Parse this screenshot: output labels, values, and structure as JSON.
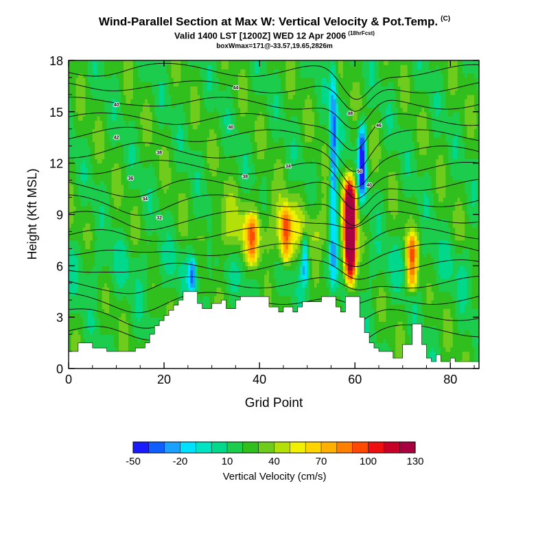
{
  "chart_data": {
    "type": "heatmap",
    "title": "Wind-Parallel Section at Max W: Vertical Velocity & Pot.Temp.",
    "title_mark": "(C)",
    "subtitle": "Valid 1400 LST [1200Z] WED 12 Apr 2006",
    "forecast_note": "(18hrFcst)",
    "info": "boxWmax=171@-33.57,19.65,2826m",
    "xlabel": "Grid Point",
    "ylabel": "Height (Kft MSL)",
    "xlim": [
      0,
      86
    ],
    "ylim": [
      0,
      18
    ],
    "x_ticks": [
      "0",
      "20",
      "40",
      "60",
      "80"
    ],
    "y_ticks": [
      "0",
      "3",
      "6",
      "9",
      "12",
      "15",
      "18"
    ],
    "colorbar": {
      "label": "Vertical Velocity (cm/s)",
      "tick_labels": [
        "-50",
        "-20",
        "10",
        "40",
        "70",
        "100",
        "130"
      ],
      "colors": [
        "#1a1aff",
        "#0f5fff",
        "#1aa0ff",
        "#00e0ff",
        "#00e4c4",
        "#00d88c",
        "#1ccc4c",
        "#30bf1c",
        "#70cc1c",
        "#b4e00a",
        "#f0f000",
        "#ffd400",
        "#ffb000",
        "#ff8000",
        "#ff4a00",
        "#ee1010",
        "#c80028",
        "#a80040"
      ]
    },
    "theta_contour_labels": [
      "40",
      "44",
      "42",
      "40",
      "38",
      "36",
      "34",
      "32",
      "48",
      "50",
      "46",
      "38",
      "34",
      "40"
    ],
    "updraft_cores": [
      {
        "x": 59,
        "z_bottom": 5,
        "z_top": 11,
        "max_w_cm_s": 171
      },
      {
        "x": 45.5,
        "z_bottom": 6,
        "z_top": 9.5,
        "max_w_cm_s": 70
      },
      {
        "x": 38.5,
        "z_bottom": 6,
        "z_top": 9,
        "max_w_cm_s": 55
      },
      {
        "x": 72,
        "z_bottom": 4.5,
        "z_top": 7.8,
        "max_w_cm_s": 80
      }
    ],
    "downdraft_cores": [
      {
        "x": 55.5,
        "z_bottom": 4.5,
        "z_top": 18,
        "min_w_cm_s": -40
      },
      {
        "x": 61.5,
        "z_bottom": 10,
        "z_top": 14.5,
        "min_w_cm_s": -50
      },
      {
        "x": 49.5,
        "z_bottom": 5,
        "z_top": 8,
        "min_w_cm_s": -30
      },
      {
        "x": 26,
        "z_bottom": 4.5,
        "z_top": 6.5,
        "min_w_cm_s": -30
      }
    ],
    "terrain_kft": [
      1,
      1,
      1.5,
      1.5,
      1.5,
      1.2,
      1.2,
      1.2,
      1,
      1,
      1,
      1,
      1,
      1,
      1.2,
      1.2,
      1.5,
      2,
      2.5,
      2.8,
      3.1,
      3.4,
      3.7,
      4,
      4.5,
      4.5,
      4.5,
      3.8,
      3.5,
      3.5,
      3.8,
      3.8,
      4,
      3.5,
      3.5,
      4,
      4.2,
      4.2,
      4.2,
      4.2,
      4.2,
      4.2,
      3.6,
      3.6,
      3.3,
      3.6,
      3.6,
      3.3,
      3.6,
      3.9,
      3.9,
      3.9,
      3.9,
      4.2,
      4.2,
      4.2,
      3.6,
      3.3,
      4.2,
      4.2,
      4.2,
      3,
      2.1,
      1.5,
      1.2,
      1,
      1,
      1,
      0.6,
      0.6,
      1.4,
      1.4,
      2.6,
      2.6,
      1.4,
      0.6,
      0.4,
      0.8,
      0.4,
      0.4,
      0.6,
      0.4,
      0.4,
      0.4,
      0.4,
      0.4,
      0.4
    ]
  }
}
